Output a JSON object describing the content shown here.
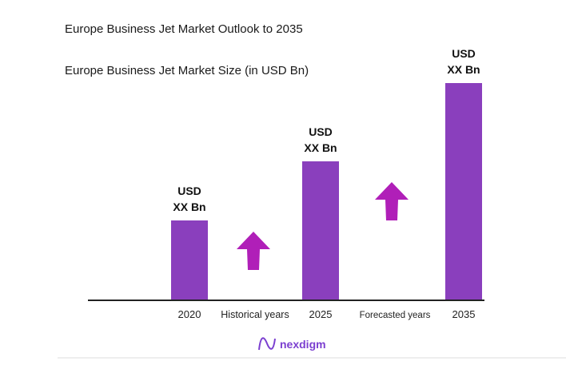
{
  "title": "Europe Business Jet Market Outlook to 2035",
  "subtitle": "Europe Business Jet Market Size (in USD Bn)",
  "chart_data": {
    "type": "bar",
    "categories": [
      "2020",
      "2025",
      "2035"
    ],
    "values_relative": [
      1.0,
      1.74,
      2.72
    ],
    "data_labels": [
      [
        "USD",
        "XX Bn"
      ],
      [
        "USD",
        "XX Bn"
      ],
      [
        "USD",
        "XX Bn"
      ]
    ],
    "period_labels": [
      "Historical years",
      "Forecasted years"
    ],
    "bar_color": "#8a3fbd",
    "arrow_color": "#b01fb8",
    "grid": false,
    "legend": "none"
  },
  "logo": {
    "text": "nexdigm",
    "color": "#7b3fd0"
  }
}
